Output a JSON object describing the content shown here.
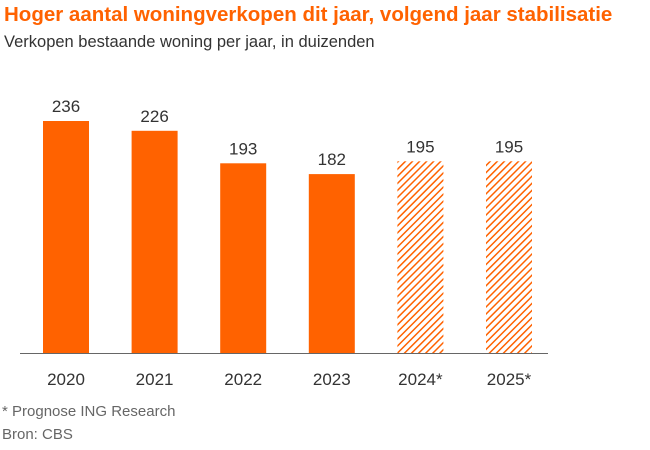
{
  "colors": {
    "accent": "#FF6200",
    "axis": "#666666",
    "text": "#333333"
  },
  "chart_data": {
    "type": "bar",
    "title": "Hoger aantal woningverkopen dit jaar, volgend jaar stabilisatie",
    "subtitle": "Verkopen bestaande woning per jaar, in duizenden",
    "categories": [
      "2020",
      "2021",
      "2022",
      "2023",
      "2024*",
      "2025*"
    ],
    "values": [
      236,
      226,
      193,
      182,
      195,
      195
    ],
    "forecast": [
      false,
      false,
      false,
      false,
      true,
      true
    ],
    "data_labels": [
      "236",
      "226",
      "193",
      "182",
      "195",
      "195"
    ],
    "xlabel": "",
    "ylabel": "",
    "ylim": [
      0,
      250
    ],
    "grid": false,
    "legend": "none"
  },
  "footnotes": {
    "note": "* Prognose ING Research",
    "source": "Bron: CBS"
  }
}
